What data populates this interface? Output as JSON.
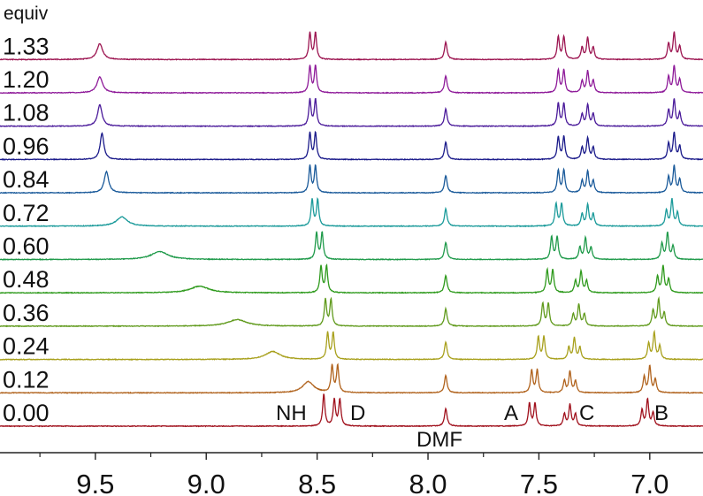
{
  "chart_data": {
    "type": "line",
    "title": "",
    "xlabel": "",
    "ylabel": "",
    "legend_title": "equiv",
    "legend_placement": "left, one label per stacked trace",
    "stacked": true,
    "grid": false,
    "xlim": [
      9.93,
      6.76
    ],
    "x_reversed": true,
    "x_ticks": [
      9.5,
      9.0,
      8.5,
      8.0,
      7.5,
      7.0
    ],
    "x_tick_labels": [
      "9.5",
      "9.0",
      "8.5",
      "8.0",
      "7.5",
      "7.0"
    ],
    "x_minor_ticks": [
      9.75,
      9.25,
      8.75,
      8.25,
      7.75,
      7.25
    ],
    "annotations": {
      "nh": "NH",
      "d": "D",
      "dmf": "DMF",
      "a": "A",
      "c": "C",
      "b": "B"
    },
    "dmf_ppm": 7.92,
    "coupling_ppm": 0.025,
    "series": [
      {
        "name": "0.00",
        "color": "#a0101c",
        "nh": [
          8.47,
          1.2,
          0.006
        ],
        "d": 8.41,
        "a": 7.53,
        "c": 7.36,
        "b": 7.01
      },
      {
        "name": "0.12",
        "color": "#b0621c",
        "nh": [
          8.54,
          0.42,
          0.03
        ],
        "d": 8.42,
        "a": 7.52,
        "c": 7.36,
        "b": 7.0
      },
      {
        "name": "0.24",
        "color": "#a8a01c",
        "nh": [
          8.7,
          0.3,
          0.04
        ],
        "d": 8.44,
        "a": 7.49,
        "c": 7.34,
        "b": 6.98
      },
      {
        "name": "0.36",
        "color": "#609a1c",
        "nh": [
          8.86,
          0.25,
          0.05
        ],
        "d": 8.45,
        "a": 7.47,
        "c": 7.32,
        "b": 6.96
      },
      {
        "name": "0.48",
        "color": "#2e9a1c",
        "nh": [
          9.03,
          0.25,
          0.05
        ],
        "d": 8.47,
        "a": 7.45,
        "c": 7.31,
        "b": 6.94
      },
      {
        "name": "0.60",
        "color": "#1f9a4a",
        "nh": [
          9.21,
          0.3,
          0.045
        ],
        "d": 8.49,
        "a": 7.43,
        "c": 7.29,
        "b": 6.92
      },
      {
        "name": "0.72",
        "color": "#1a9a9a",
        "nh": [
          9.38,
          0.35,
          0.03
        ],
        "d": 8.51,
        "a": 7.41,
        "c": 7.28,
        "b": 6.9
      },
      {
        "name": "0.84",
        "color": "#1a5a9a",
        "nh": [
          9.45,
          0.8,
          0.012
        ],
        "d": 8.52,
        "a": 7.4,
        "c": 7.28,
        "b": 6.89
      },
      {
        "name": "0.96",
        "color": "#1a1a8a",
        "nh": [
          9.47,
          1.0,
          0.01
        ],
        "d": 8.52,
        "a": 7.4,
        "c": 7.28,
        "b": 6.89
      },
      {
        "name": "1.08",
        "color": "#4a1a9a",
        "nh": [
          9.48,
          0.8,
          0.012
        ],
        "d": 8.52,
        "a": 7.4,
        "c": 7.28,
        "b": 6.89
      },
      {
        "name": "1.20",
        "color": "#8e1a99",
        "nh": [
          9.48,
          0.6,
          0.015
        ],
        "d": 8.52,
        "a": 7.4,
        "c": 7.28,
        "b": 6.89
      },
      {
        "name": "1.33",
        "color": "#9c1450",
        "nh": [
          9.48,
          0.6,
          0.015
        ],
        "d": 8.52,
        "a": 7.4,
        "c": 7.28,
        "b": 6.89
      }
    ]
  }
}
